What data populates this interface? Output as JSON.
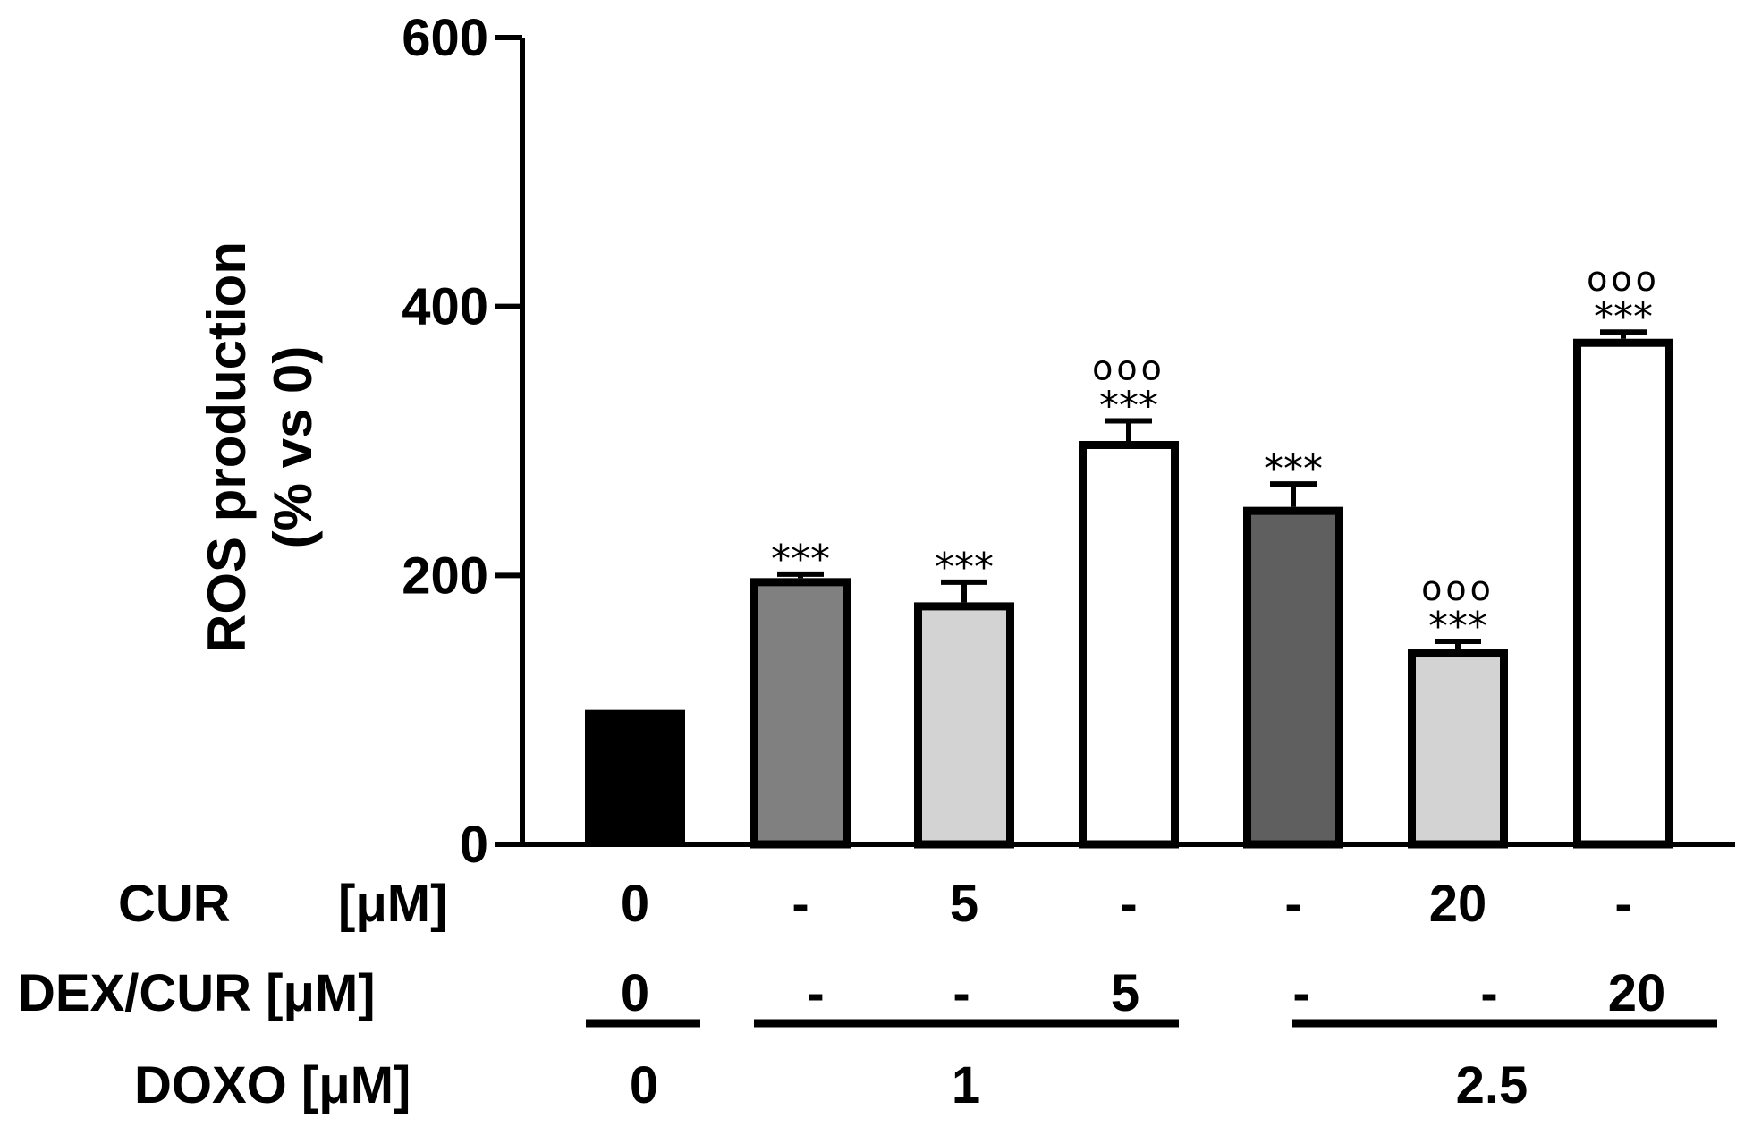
{
  "chart_data": {
    "type": "bar",
    "ylabel_line1": "ROS production",
    "ylabel_line2": "(% vs 0)",
    "ylim": [
      0,
      600
    ],
    "yticks": [
      "0",
      "200",
      "400",
      "600"
    ],
    "ytick_values": [
      0,
      200,
      400,
      600
    ],
    "values": [
      100,
      198,
      180,
      300,
      251,
      145,
      376
    ],
    "errors": [
      0,
      3,
      15,
      15,
      17,
      6,
      5
    ],
    "bar_colors": [
      "#000000",
      "#808080",
      "#d3d3d3",
      "#ffffff",
      "#5f5f5f",
      "#d3d3d3",
      "#ffffff"
    ],
    "significance": [
      {
        "stars": "",
        "circles": ""
      },
      {
        "stars": "***",
        "circles": ""
      },
      {
        "stars": "***",
        "circles": ""
      },
      {
        "stars": "***",
        "circles": "ooo"
      },
      {
        "stars": "***",
        "circles": ""
      },
      {
        "stars": "***",
        "circles": "ooo"
      },
      {
        "stars": "***",
        "circles": "ooo"
      }
    ],
    "table": {
      "cur_label": "CUR",
      "cur_unit": "[μM]",
      "cur_values": [
        "0",
        "-",
        "5",
        "-",
        "-",
        "20",
        "-"
      ],
      "dexcur_label": "DEX/CUR [μM]",
      "dexcur_values": [
        "0",
        "-",
        "-",
        "5",
        "-",
        "-",
        "20"
      ],
      "doxo_label": "DOXO [μM]",
      "doxo_groups": [
        "0",
        "1",
        "2.5"
      ]
    }
  }
}
